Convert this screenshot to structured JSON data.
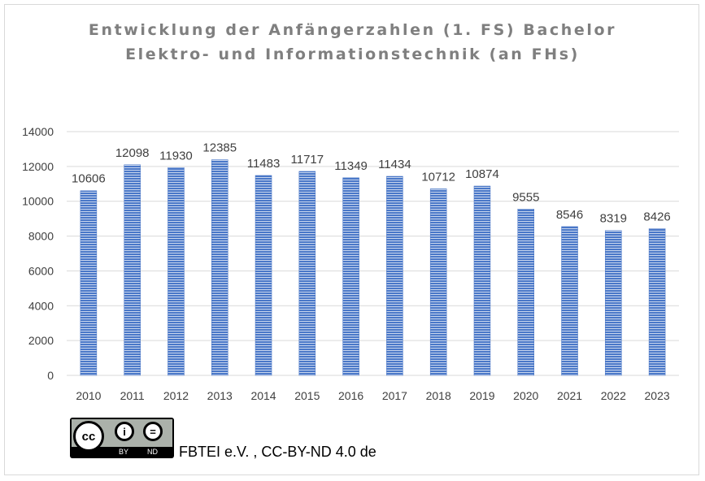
{
  "chart_data": {
    "type": "bar",
    "title": "Entwicklung der Anfängerzahlen (1. FS) Bachelor",
    "subtitle": "Elektro- und Informationstechnik (an FHs)",
    "categories": [
      "2010",
      "2011",
      "2012",
      "2013",
      "2014",
      "2015",
      "2016",
      "2017",
      "2018",
      "2019",
      "2020",
      "2021",
      "2022",
      "2023"
    ],
    "values": [
      10606,
      12098,
      11930,
      12385,
      11483,
      11717,
      11349,
      11434,
      10712,
      10874,
      9555,
      8546,
      8319,
      8426
    ],
    "ylim": [
      0,
      14000
    ],
    "yticks": [
      0,
      2000,
      4000,
      6000,
      8000,
      10000,
      12000,
      14000
    ],
    "grid": true,
    "legend": "none",
    "bar_color": "#4472c4",
    "data_labels": true
  },
  "footer": {
    "license_logo": "CC BY ND",
    "credit": "FBTEI e.V. , CC-BY-ND 4.0 de"
  }
}
